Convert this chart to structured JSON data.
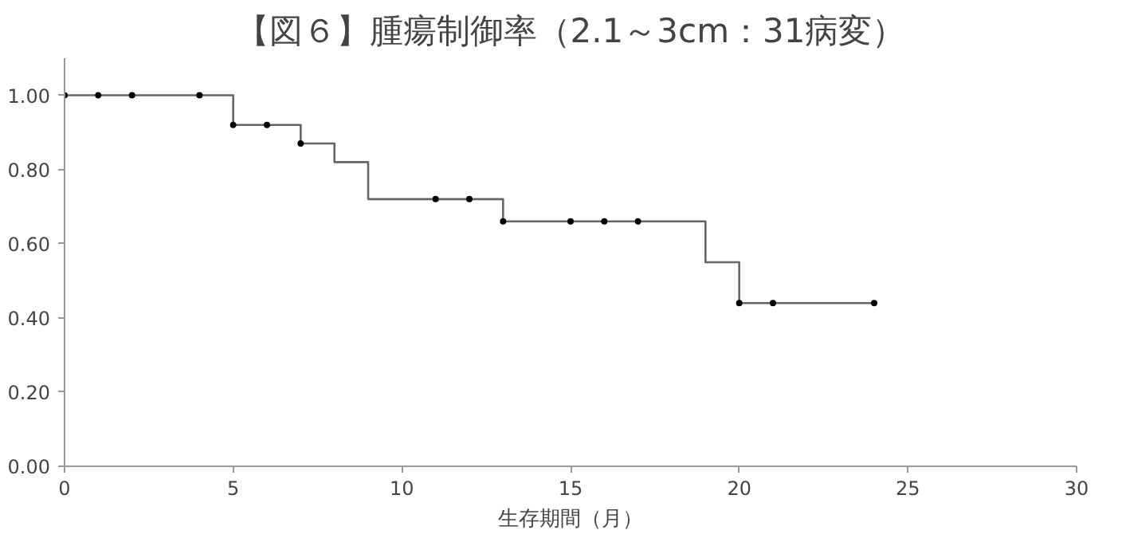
{
  "chart_data": {
    "type": "step",
    "title": "【図６】腫瘍制御率（2.1～3cm：31病変）",
    "xlabel": "生存期間（月）",
    "series": [
      {
        "color": "#666666",
        "marker": "none",
        "x": [
          0,
          5,
          7,
          8,
          9,
          13,
          19,
          20,
          24
        ],
        "values": [
          1.0,
          0.92,
          0.87,
          0.82,
          0.72,
          0.66,
          0.55,
          0.44,
          0.44
        ]
      },
      {
        "type": "scatter",
        "color": "#000000",
        "marker": "circle",
        "x": [
          0,
          1,
          2,
          4,
          5,
          6,
          7,
          11,
          12,
          13,
          15,
          16,
          17,
          20,
          21,
          24
        ],
        "values": [
          1.0,
          1.0,
          1.0,
          1.0,
          0.92,
          0.92,
          0.87,
          0.72,
          0.72,
          0.66,
          0.66,
          0.66,
          0.66,
          0.44,
          0.44,
          0.44
        ]
      }
    ],
    "xlim": [
      0,
      30
    ],
    "xticks": [
      0,
      5,
      10,
      15,
      20,
      25,
      30
    ],
    "ylim": [
      0,
      1.1
    ],
    "yticks": [
      {
        "value": 0,
        "label": "0.00"
      },
      {
        "value": 0.2,
        "label": "0.20"
      },
      {
        "value": 0.4,
        "label": "0.40"
      },
      {
        "value": 0.6,
        "label": "0.60"
      },
      {
        "value": 0.8,
        "label": "0.80"
      },
      {
        "value": 1.0,
        "label": "1.00"
      }
    ],
    "grid": false
  }
}
